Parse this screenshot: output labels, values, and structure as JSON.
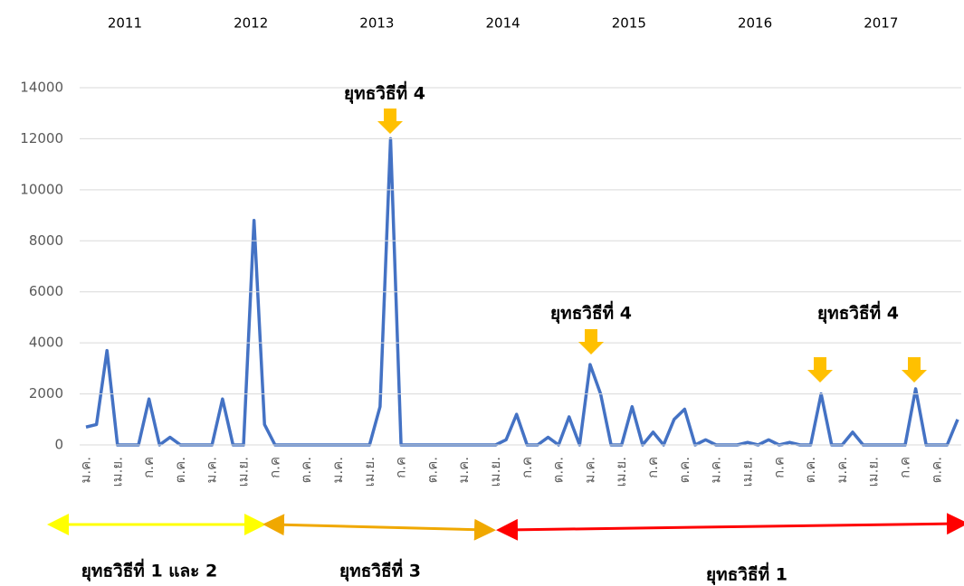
{
  "chart_data": {
    "type": "line",
    "years": [
      "2011",
      "2012",
      "2013",
      "2014",
      "2015",
      "2016",
      "2017"
    ],
    "annotations": [
      "ยุทธวิธีที่ 4",
      "ยุทธวิธีที่ 4",
      "ยุทธวิธีที่ 4"
    ],
    "range_labels": [
      "ยุทธวิธีที่ 1 และ 2",
      "ยุทธวิธีที่ 3",
      "ยุทธวิธีที่ 1"
    ],
    "categories": [
      "ม.ค.",
      null,
      null,
      "เม.ย.",
      null,
      null,
      "ก.ค",
      null,
      null,
      "ต.ค.",
      null,
      null,
      "ม.ค.",
      null,
      null,
      "เม.ย.",
      null,
      null,
      "ก.ค",
      null,
      null,
      "ต.ค.",
      null,
      null,
      "ม.ค.",
      null,
      null,
      "เม.ย.",
      null,
      null,
      "ก.ค",
      null,
      null,
      "ต.ค.",
      null,
      null,
      "ม.ค.",
      null,
      null,
      "เม.ย.",
      null,
      null,
      "ก.ค",
      null,
      null,
      "ต.ค.",
      null,
      null,
      "ม.ค.",
      null,
      null,
      "เม.ย.",
      null,
      null,
      "ก.ค",
      null,
      null,
      "ต.ค.",
      null,
      null,
      "ม.ค.",
      null,
      null,
      "เม.ย.",
      null,
      null,
      "ก.ค",
      null,
      null,
      "ต.ค.",
      null,
      null,
      "ม.ค.",
      null,
      null,
      "เม.ย.",
      null,
      null,
      "ก.ค",
      null,
      null,
      "ต.ค.",
      null,
      null
    ],
    "series": [
      {
        "color": "#4472c4",
        "values": [
          700,
          800,
          3700,
          0,
          0,
          0,
          1800,
          0,
          300,
          0,
          0,
          0,
          0,
          1800,
          0,
          0,
          8800,
          800,
          0,
          0,
          0,
          0,
          0,
          0,
          0,
          0,
          0,
          0,
          1500,
          12000,
          0,
          0,
          0,
          0,
          0,
          0,
          0,
          0,
          0,
          0,
          200,
          1200,
          0,
          0,
          300,
          0,
          1100,
          0,
          3150,
          2000,
          0,
          0,
          1500,
          0,
          500,
          0,
          1000,
          1400,
          0,
          200,
          0,
          0,
          0,
          100,
          0,
          200,
          0,
          100,
          0,
          0,
          2000,
          0,
          0,
          500,
          0,
          0,
          0,
          0,
          0,
          2200,
          0,
          0,
          0,
          1000
        ]
      }
    ],
    "ylim": [
      0,
      14000
    ],
    "yticks": [
      0,
      2000,
      4000,
      6000,
      8000,
      10000,
      12000,
      14000
    ],
    "grid": true
  }
}
